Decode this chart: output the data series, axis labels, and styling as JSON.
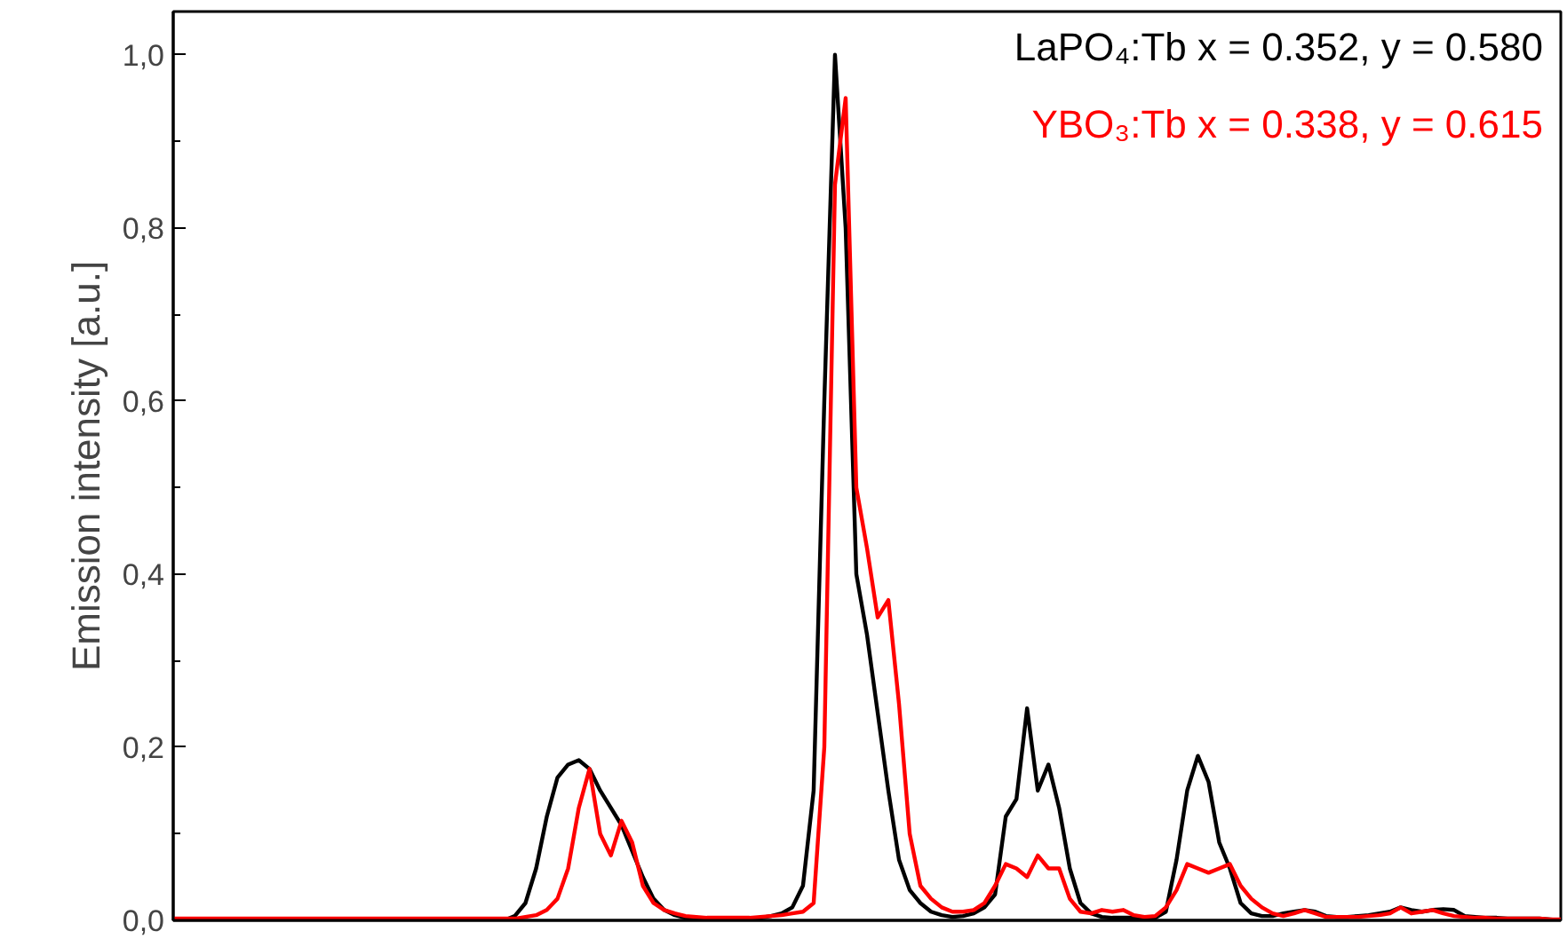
{
  "chart_data": {
    "type": "line",
    "ylabel": "Emission intensity [a.u.]",
    "categories": [
      null,
      null,
      null,
      null,
      null,
      null,
      null,
      null,
      null,
      null,
      null,
      null,
      null,
      null,
      null,
      null,
      null,
      null,
      null,
      null,
      null,
      null,
      null,
      null,
      null,
      null,
      null,
      null,
      null,
      null,
      null,
      null,
      null,
      null,
      null,
      null,
      null,
      null,
      null,
      null,
      null,
      null,
      null,
      null,
      null,
      null,
      null,
      null,
      null,
      null,
      null,
      null,
      null,
      null,
      null,
      null,
      null,
      null,
      null,
      null,
      null,
      null,
      null,
      null,
      null,
      null,
      null,
      null,
      null,
      null,
      null,
      null,
      null,
      null,
      null,
      null,
      null,
      null,
      null,
      null,
      null,
      null,
      null,
      null,
      null,
      null,
      null,
      null,
      null,
      null,
      null,
      null,
      null,
      null,
      null,
      null,
      null,
      null,
      null,
      null,
      null,
      null,
      null,
      null,
      null,
      null,
      null,
      null,
      null,
      null,
      null,
      null,
      null,
      null,
      null,
      null,
      null,
      null,
      null,
      null,
      null,
      null,
      null,
      null,
      null,
      null,
      null,
      null,
      null,
      null,
      null
    ],
    "ylim": [
      0,
      1.05
    ],
    "yticks": [
      {
        "value": 0,
        "label": "0,0"
      },
      {
        "value": 0.1,
        "label": null
      },
      {
        "value": 0.2,
        "label": "0,2"
      },
      {
        "value": 0.3,
        "label": null
      },
      {
        "value": 0.4,
        "label": "0,4"
      },
      {
        "value": 0.5,
        "label": null
      },
      {
        "value": 0.6,
        "label": "0,6"
      },
      {
        "value": 0.7,
        "label": null
      },
      {
        "value": 0.8,
        "label": "0,8"
      },
      {
        "value": 0.9,
        "label": null
      },
      {
        "value": 1.0,
        "label": "1,0"
      }
    ],
    "grid": false,
    "legend": "top right",
    "marker": "none",
    "line_style": "solid",
    "tick_labels": "y",
    "series": [
      {
        "name": "LaPO₄:Tb  x = 0.352, y = 0.580",
        "color": "#000000",
        "values": [
          0,
          0,
          0,
          0,
          0,
          0,
          0,
          0,
          0,
          0,
          0,
          0,
          0,
          0,
          0,
          0,
          0,
          0,
          0,
          0,
          0,
          0,
          0,
          0,
          0,
          0,
          0,
          0,
          0,
          0,
          0,
          0,
          0.005,
          0.02,
          0.06,
          0.12,
          0.165,
          0.18,
          0.185,
          0.175,
          0.15,
          0.13,
          0.11,
          0.08,
          0.05,
          0.025,
          0.012,
          0.006,
          0.003,
          0.003,
          0.002,
          0.002,
          0.002,
          0.002,
          0.002,
          0.003,
          0.005,
          0.008,
          0.015,
          0.04,
          0.15,
          0.6,
          1.0,
          0.8,
          0.4,
          0.33,
          0.24,
          0.15,
          0.07,
          0.035,
          0.02,
          0.01,
          0.006,
          0.004,
          0.005,
          0.008,
          0.015,
          0.03,
          0.12,
          0.14,
          0.245,
          0.15,
          0.18,
          0.13,
          0.06,
          0.02,
          0.008,
          0.004,
          0.003,
          0.003,
          0.003,
          0.003,
          0.003,
          0.01,
          0.07,
          0.15,
          0.19,
          0.16,
          0.09,
          0.06,
          0.02,
          0.008,
          0.005,
          0.005,
          0.008,
          0.01,
          0.012,
          0.01,
          0.005,
          0.004,
          0.004,
          0.005,
          0.006,
          0.008,
          0.01,
          0.015,
          0.012,
          0.01,
          0.012,
          0.013,
          0.012,
          0.005,
          0.004,
          0.003,
          0.003,
          0.002,
          0.002,
          0.002,
          0.002,
          0.001,
          0
        ]
      },
      {
        "name": "YBO₃:Tb  x = 0.338, y = 0.615",
        "color": "#ff0000",
        "values": [
          0.002,
          0.002,
          0.002,
          0.002,
          0.002,
          0.002,
          0.002,
          0.002,
          0.002,
          0.002,
          0.002,
          0.002,
          0.002,
          0.002,
          0.002,
          0.002,
          0.002,
          0.002,
          0.002,
          0.002,
          0.002,
          0.002,
          0.002,
          0.002,
          0.002,
          0.002,
          0.002,
          0.002,
          0.002,
          0.002,
          0.002,
          0.002,
          0.002,
          0.004,
          0.006,
          0.012,
          0.025,
          0.06,
          0.13,
          0.175,
          0.1,
          0.075,
          0.115,
          0.09,
          0.04,
          0.02,
          0.012,
          0.008,
          0.005,
          0.004,
          0.003,
          0.003,
          0.003,
          0.003,
          0.003,
          0.004,
          0.005,
          0.006,
          0.008,
          0.01,
          0.02,
          0.2,
          0.85,
          0.95,
          0.5,
          0.43,
          0.35,
          0.37,
          0.25,
          0.1,
          0.04,
          0.025,
          0.015,
          0.01,
          0.01,
          0.012,
          0.02,
          0.04,
          0.065,
          0.06,
          0.05,
          0.075,
          0.06,
          0.06,
          0.025,
          0.01,
          0.008,
          0.012,
          0.01,
          0.012,
          0.006,
          0.004,
          0.005,
          0.015,
          0.035,
          0.065,
          0.06,
          0.055,
          0.06,
          0.065,
          0.04,
          0.025,
          0.015,
          0.008,
          0.005,
          0.008,
          0.012,
          0.008,
          0.004,
          0.004,
          0.004,
          0.004,
          0.005,
          0.006,
          0.008,
          0.015,
          0.008,
          0.01,
          0.012,
          0.008,
          0.005,
          0.004,
          0.003,
          0.003,
          0.002,
          0.002,
          0.002,
          0.002,
          0.002,
          0.001,
          0.001
        ]
      }
    ]
  }
}
